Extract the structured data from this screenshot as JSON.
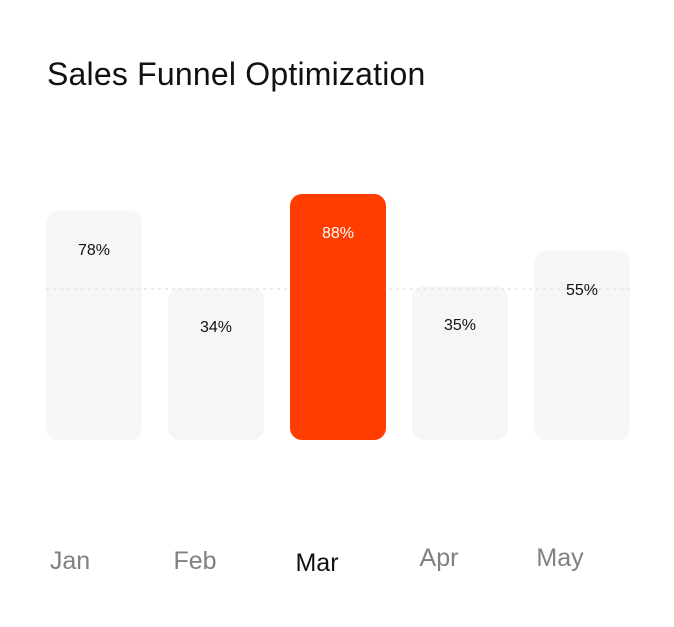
{
  "title": "Sales Funnel Optimization",
  "chart_data": {
    "type": "bar",
    "categories": [
      "Jan",
      "Feb",
      "Mar",
      "Apr",
      "May"
    ],
    "values": [
      78,
      34,
      88,
      35,
      55
    ],
    "data_labels": [
      "78%",
      "34%",
      "88%",
      "35%",
      "55%"
    ],
    "highlighted_category": "Mar",
    "unit": "%",
    "legend": "none",
    "grid": false,
    "reference_line": "dashed"
  },
  "colors": {
    "bar_default": "#f6f6f4",
    "bar_highlight": "#ff3d00",
    "label_default": "#111111",
    "label_highlight": "#ffffff",
    "month_default": "#808080",
    "month_highlight": "#111111",
    "reference_line": "#e6e6e6"
  }
}
